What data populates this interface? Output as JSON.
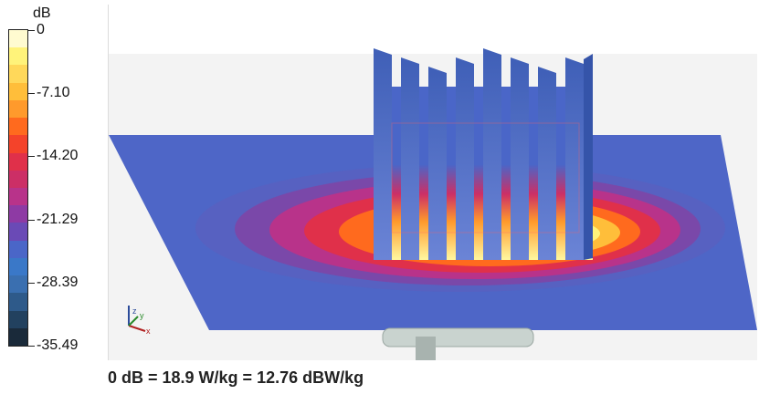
{
  "colorbar": {
    "unit": "dB",
    "ticks": [
      "0",
      "-7.10",
      "-14.20",
      "-21.29",
      "-28.39",
      "-35.49"
    ],
    "colors": [
      "#fffbd0",
      "#fff37a",
      "#ffd85a",
      "#ffbe3a",
      "#ff9a2c",
      "#ff6a1e",
      "#f4432a",
      "#e0304a",
      "#cc2f66",
      "#b8338a",
      "#8e3aa4",
      "#6a4ab6",
      "#4a66c8",
      "#3a78c8",
      "#3a6fb0",
      "#2e5a8a",
      "#22415f",
      "#1a2a3a"
    ]
  },
  "viewport": {
    "axis_labels": {
      "x": "x",
      "y": "y",
      "z": "z"
    }
  },
  "footer": {
    "normalization_text": "0 dB = 18.9 W/kg = 12.76 dBW/kg"
  }
}
